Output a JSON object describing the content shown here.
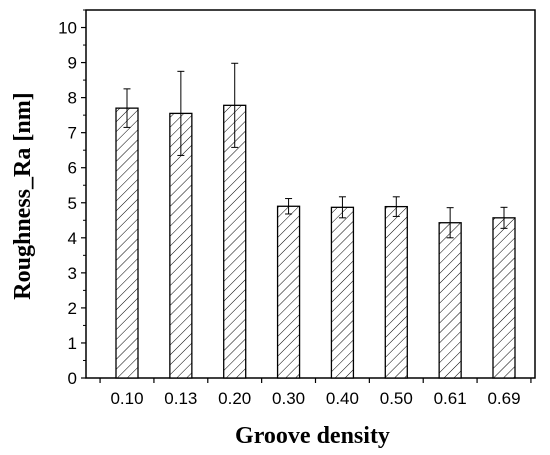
{
  "chart_data": {
    "type": "bar",
    "title": "",
    "xlabel": "Groove density",
    "ylabel": "Roughness_Ra [nm]",
    "categories": [
      "0.10",
      "0.13",
      "0.20",
      "0.30",
      "0.40",
      "0.50",
      "0.61",
      "0.69"
    ],
    "values": [
      7.7,
      7.55,
      7.78,
      4.9,
      4.87,
      4.89,
      4.43,
      4.57
    ],
    "errors": [
      0.55,
      1.2,
      1.2,
      0.22,
      0.3,
      0.28,
      0.43,
      0.3
    ],
    "ylim": [
      0,
      10.5
    ],
    "yticks": [
      "0",
      "1",
      "2",
      "3",
      "4",
      "5",
      "6",
      "7",
      "8",
      "9",
      "10"
    ],
    "bar_fill": "diagonal-hatch",
    "grid": false,
    "colors": {
      "bar_stroke": "#000000",
      "hatch": "#000000",
      "background": "#ffffff"
    }
  }
}
